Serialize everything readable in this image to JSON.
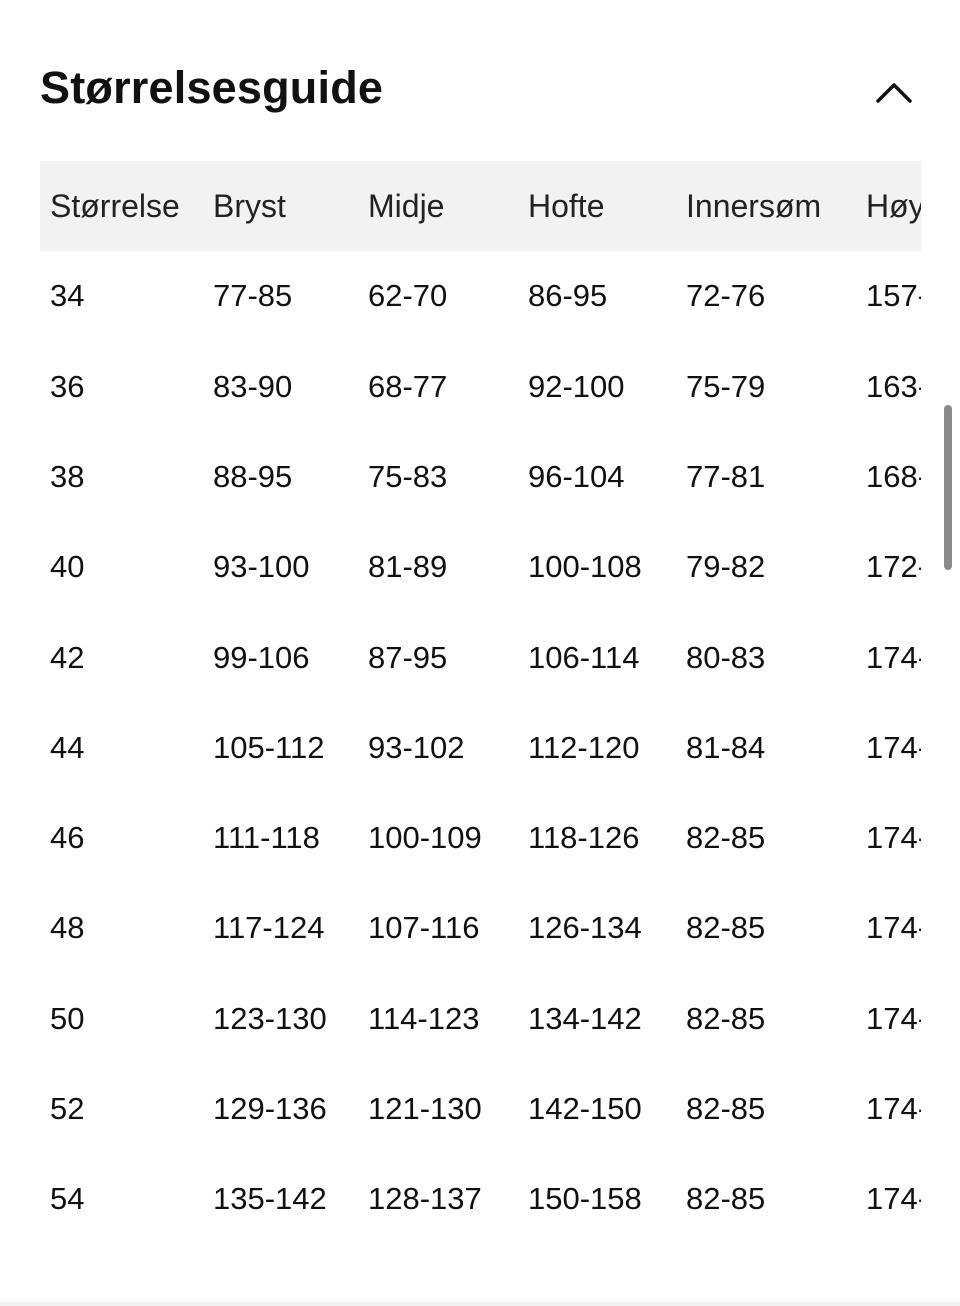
{
  "section": {
    "title": "Størrelsesguide",
    "toggle_icon": "chevron-up-icon"
  },
  "table": {
    "headers": [
      "Størrelse",
      "Bryst",
      "Midje",
      "Hofte",
      "Innersøm",
      "Høy"
    ],
    "rows": [
      [
        "34",
        "77-85",
        "62-70",
        "86-95",
        "72-76",
        "157-"
      ],
      [
        "36",
        "83-90",
        "68-77",
        "92-100",
        "75-79",
        "163-"
      ],
      [
        "38",
        "88-95",
        "75-83",
        "96-104",
        "77-81",
        "168-"
      ],
      [
        "40",
        "93-100",
        "81-89",
        "100-108",
        "79-82",
        "172-"
      ],
      [
        "42",
        "99-106",
        "87-95",
        "106-114",
        "80-83",
        "174-"
      ],
      [
        "44",
        "105-112",
        "93-102",
        "112-120",
        "81-84",
        "174-"
      ],
      [
        "46",
        "111-118",
        "100-109",
        "118-126",
        "82-85",
        "174-"
      ],
      [
        "48",
        "117-124",
        "107-116",
        "126-134",
        "82-85",
        "174-"
      ],
      [
        "50",
        "123-130",
        "114-123",
        "134-142",
        "82-85",
        "174-"
      ],
      [
        "52",
        "129-136",
        "121-130",
        "142-150",
        "82-85",
        "174-"
      ],
      [
        "54",
        "135-142",
        "128-137",
        "150-158",
        "82-85",
        "174-"
      ]
    ]
  },
  "colors": {
    "header_bg": "#f2f2f2",
    "text": "#111111",
    "scrollbar": "#8a8a8a"
  }
}
